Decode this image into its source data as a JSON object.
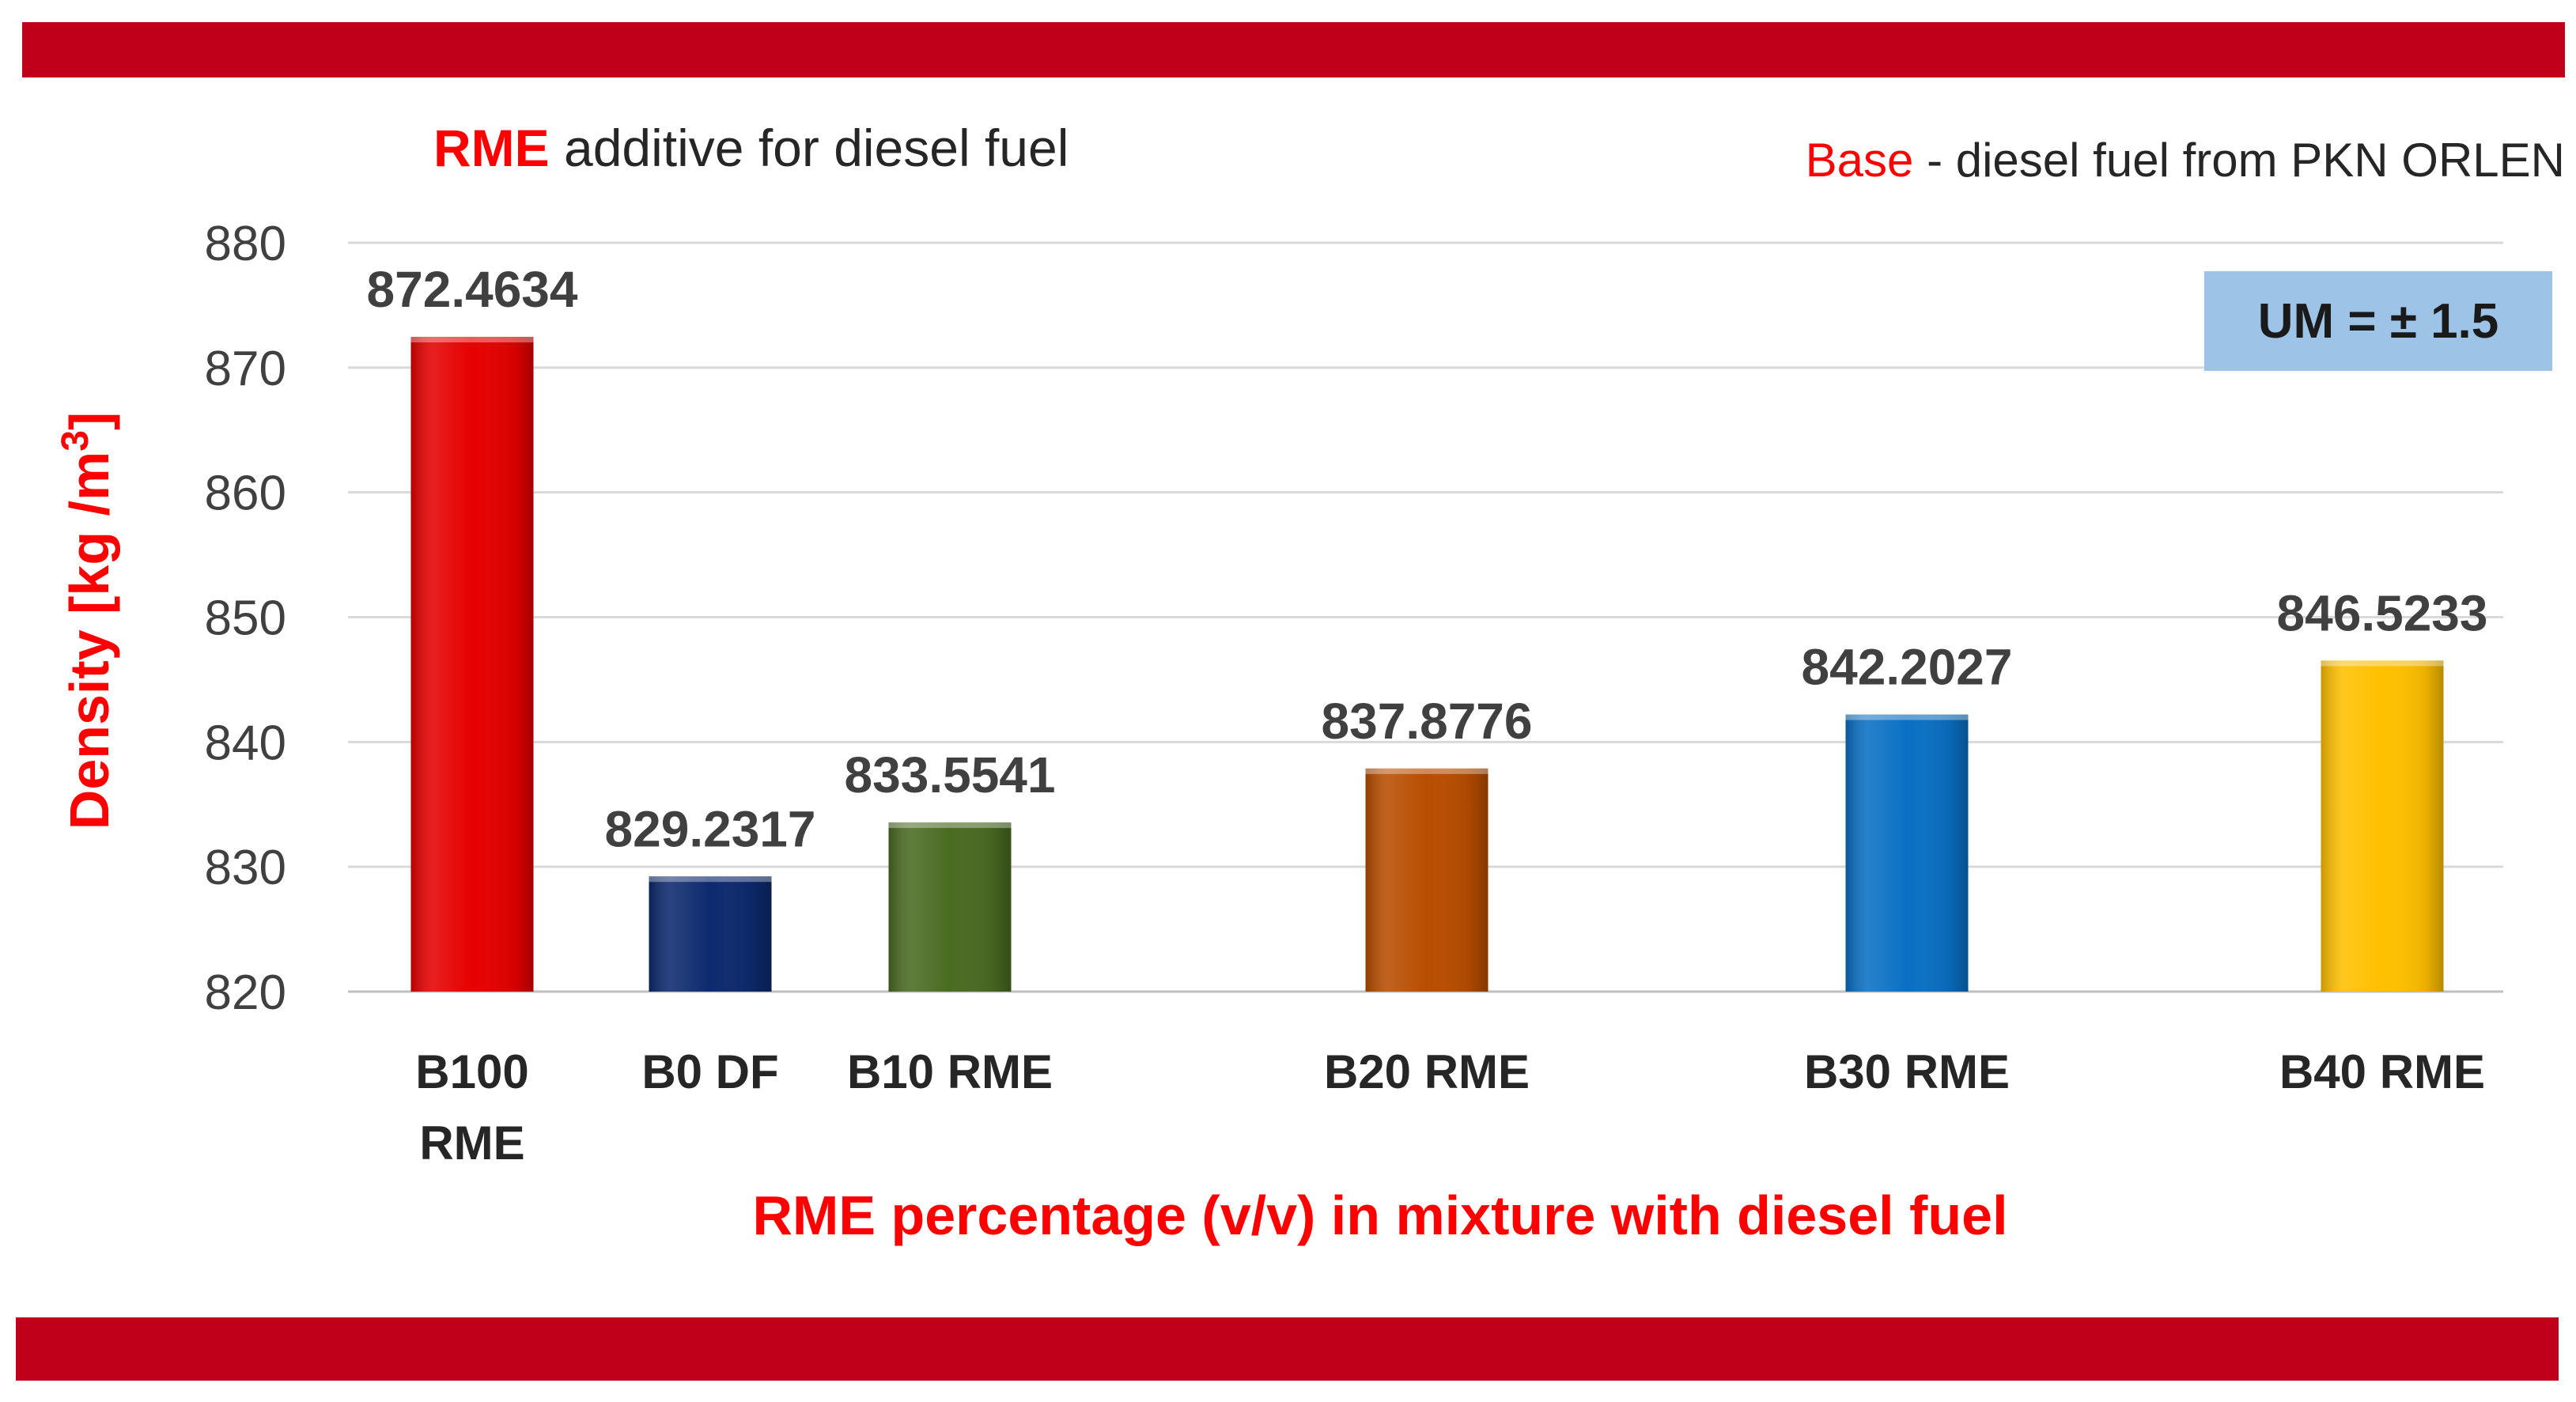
{
  "chart_data": {
    "type": "bar",
    "title_accent": "RME",
    "title_rest": " additive for diesel fuel",
    "subtitle_accent": "Base",
    "subtitle_rest": " - diesel fuel from PKN  ORLEN",
    "annotation": "UM = ± 1.5",
    "xlabel": "RME percentage (v/v)  in mixture with diesel fuel",
    "ylabel_main": "Density [kg /m",
    "ylabel_sup": "3",
    "ylabel_close": "]",
    "ylim": [
      820,
      880
    ],
    "yticks": [
      820,
      830,
      840,
      850,
      860,
      870,
      880
    ],
    "grid": true,
    "categories": [
      [
        "B100",
        "RME"
      ],
      [
        "B0 DF"
      ],
      [
        "B10 RME"
      ],
      [
        "B20 RME"
      ],
      [
        "B30 RME"
      ],
      [
        "B40 RME"
      ]
    ],
    "values": [
      872.4634,
      829.2317,
      833.5541,
      837.8776,
      842.2027,
      846.5233
    ],
    "value_labels": [
      "872.4634",
      "829.2317",
      "833.5541",
      "837.8776",
      "842.2027",
      "846.5233"
    ],
    "colors": [
      "#e60000",
      "#0d2a6e",
      "#4a6b22",
      "#b84d00",
      "#0a70c4",
      "#ffc000"
    ]
  },
  "colors": {
    "band": "#c0001a",
    "accent": "#ff0000",
    "um_box": "#9dc3e6"
  }
}
